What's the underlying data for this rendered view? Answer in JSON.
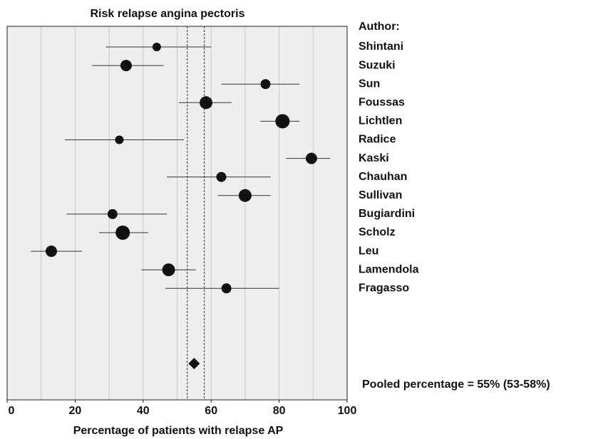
{
  "chart_data": {
    "type": "forest",
    "title": "Risk relapse angina pectoris",
    "xlabel": "Percentage of patients with relapse AP",
    "legend_title": "Author:",
    "categories": [
      "Shintani",
      "Suzuki",
      "Sun",
      "Foussas",
      "Lichtlen",
      "Radice",
      "Kaski",
      "Chauhan",
      "Sullivan",
      "Bugiardini",
      "Scholz",
      "Leu",
      "Lamendola",
      "Fragasso"
    ],
    "values": [
      44,
      35,
      76,
      58.5,
      81,
      33,
      89.5,
      63,
      70,
      31,
      34,
      13,
      47.5,
      64.5
    ],
    "lower": [
      29,
      25,
      63,
      50.5,
      74.5,
      17,
      82,
      47,
      62,
      17.5,
      27,
      7,
      39.5,
      46.5
    ],
    "upper": [
      60,
      46,
      86,
      66,
      86,
      52,
      95,
      77.5,
      77.5,
      47,
      41.5,
      22,
      55.5,
      80
    ],
    "weights": [
      6,
      8,
      7,
      9,
      10,
      6,
      8,
      7,
      9,
      7,
      10,
      8,
      9,
      7
    ],
    "pooled": {
      "value": 55,
      "lower": 53,
      "upper": 58,
      "label": "Pooled percentage = 55% (53-58%)"
    },
    "color": "#111111",
    "xlim": [
      0,
      100
    ],
    "xticks": [
      0,
      20,
      40,
      60,
      80,
      100
    ],
    "grid_step": 10,
    "grid": true
  }
}
